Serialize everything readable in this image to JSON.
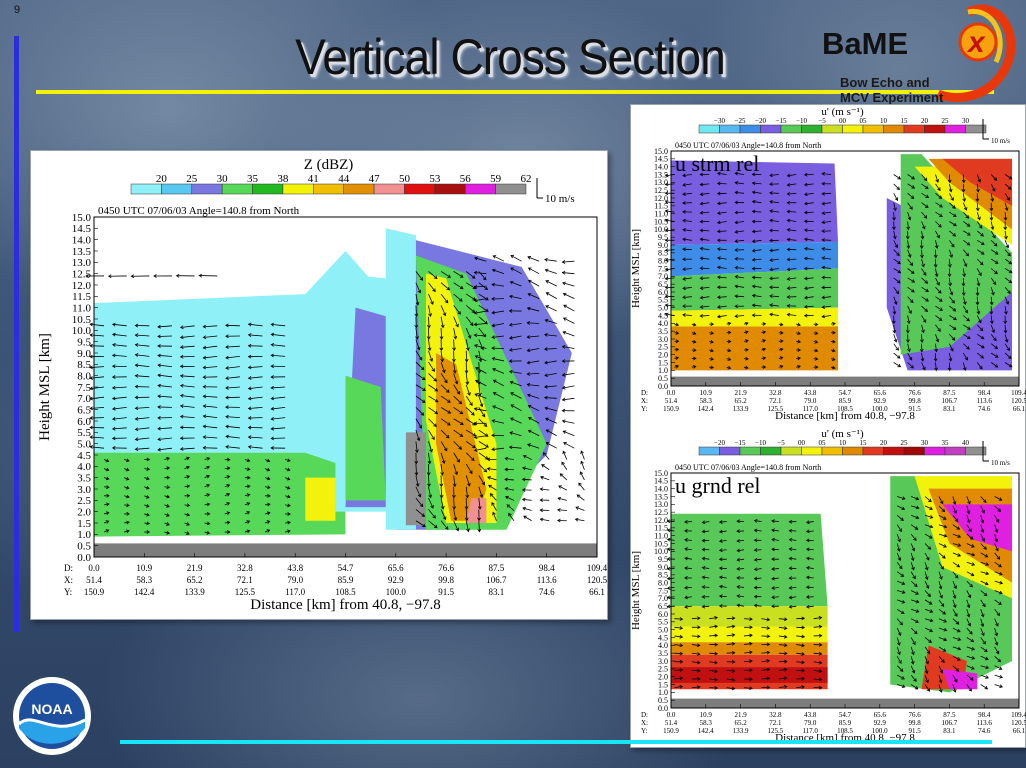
{
  "slide": {
    "number": "9",
    "title": "Vertical Cross Section",
    "logo": {
      "word": "BaME",
      "x": "x",
      "tagline1": "Bow Echo and",
      "tagline2": "MCV Experiment"
    },
    "noaa_label": "NOAA"
  },
  "colors": {
    "title_rule": "#f3f10a",
    "bottom_rule": "#18e6f6",
    "left_rule": "#2a2ee0"
  },
  "chart_data": [
    {
      "type": "heatmap",
      "title": "Z (dBZ)",
      "subtitle": "0450 UTC   07/06/03   Angle=140.8 from North",
      "ylabel": "Height MSL [km]",
      "xlabel": "Distance [km] from 40.8, −97.8",
      "vector_scale_label": "10 m/s",
      "legend": {
        "values": [
          "20",
          "25",
          "30",
          "35",
          "38",
          "41",
          "44",
          "47",
          "50",
          "53",
          "56",
          "59",
          "62"
        ],
        "colors": [
          "#8ff0f8",
          "#58c8f0",
          "#7878e0",
          "#58d858",
          "#22b822",
          "#f2f20a",
          "#f0c000",
          "#e09000",
          "#f09090",
          "#e01010",
          "#a81010",
          "#e020e0",
          "#909090"
        ]
      },
      "ylim": [
        0,
        15
      ],
      "y_ticks": [
        "0.0",
        "0.5",
        "1.0",
        "1.5",
        "2.0",
        "2.5",
        "3.0",
        "3.5",
        "4.0",
        "4.5",
        "5.0",
        "5.5",
        "6.0",
        "6.5",
        "7.0",
        "7.5",
        "8.0",
        "8.5",
        "9.0",
        "9.5",
        "10.0",
        "10.5",
        "11.0",
        "11.5",
        "12.0",
        "12.5",
        "13.0",
        "13.5",
        "14.0",
        "14.5",
        "15.0"
      ],
      "x_ticks": {
        "D": [
          "0.0",
          "10.9",
          "21.9",
          "32.8",
          "43.8",
          "54.7",
          "65.6",
          "76.6",
          "87.5",
          "98.4",
          "109.4"
        ],
        "X": [
          "51.4",
          "58.3",
          "65.2",
          "72.1",
          "79.0",
          "85.9",
          "92.9",
          "99.8",
          "106.7",
          "113.6",
          "120.5"
        ],
        "Y": [
          "150.9",
          "142.4",
          "133.9",
          "125.5",
          "117.0",
          "108.5",
          "100.0",
          "91.5",
          "83.1",
          "74.6",
          "66.1"
        ]
      },
      "row_labels": [
        "D:",
        "X:",
        "Y:"
      ]
    },
    {
      "type": "heatmap",
      "title": "u' (m s⁻¹)",
      "subtitle": "0450 UTC   07/06/03   Angle=140.8 from North",
      "annotation": "u strm rel",
      "ylabel": "Height MSL [km]",
      "xlabel": "Distance [km] from 40.8, −97.8",
      "vector_scale_label": "10 m/s",
      "legend": {
        "values": [
          "−30",
          "−25",
          "−20",
          "−15",
          "−10",
          "−5",
          "00",
          "05",
          "10",
          "15",
          "20",
          "25",
          "30"
        ],
        "colors": [
          "#70e8f0",
          "#58b8f0",
          "#3c8ce8",
          "#7a5ee0",
          "#58c858",
          "#30b030",
          "#c8e020",
          "#f2f20a",
          "#f0c000",
          "#e08a00",
          "#e03a20",
          "#c01010",
          "#e020e0",
          "#909090"
        ]
      },
      "ylim": [
        0,
        15
      ],
      "x_ticks": {
        "D": [
          "0.0",
          "10.9",
          "21.9",
          "32.8",
          "43.8",
          "54.7",
          "65.6",
          "76.6",
          "87.5",
          "98.4",
          "109.4"
        ],
        "X": [
          "51.4",
          "58.3",
          "65.2",
          "72.1",
          "79.0",
          "85.9",
          "92.9",
          "99.8",
          "106.7",
          "113.6",
          "120.5"
        ],
        "Y": [
          "150.9",
          "142.4",
          "133.9",
          "125.5",
          "117.0",
          "108.5",
          "100.0",
          "91.5",
          "83.1",
          "74.6",
          "66.1"
        ]
      },
      "row_labels": [
        "D:",
        "X:",
        "Y:"
      ]
    },
    {
      "type": "heatmap",
      "title": "u' (m s⁻¹)",
      "subtitle": "0450 UTC   07/06/03   Angle=140.8 from North",
      "annotation": "u grnd rel",
      "ylabel": "Height MSL [km]",
      "xlabel": "Distance [km] from 40.8, −97.8",
      "vector_scale_label": "10 m/s",
      "legend": {
        "values": [
          "−20",
          "−15",
          "−10",
          "−5",
          "00",
          "05",
          "10",
          "15",
          "20",
          "25",
          "30",
          "35",
          "40"
        ],
        "colors": [
          "#58b8f0",
          "#7a5ee0",
          "#58c858",
          "#30b030",
          "#c8e020",
          "#f2f20a",
          "#f0c000",
          "#e08a00",
          "#e03a20",
          "#c01010",
          "#a00808",
          "#e020e0",
          "#c040c0",
          "#909090"
        ]
      },
      "ylim": [
        0,
        15
      ],
      "x_ticks": {
        "D": [
          "0.0",
          "10.9",
          "21.9",
          "32.8",
          "43.8",
          "54.7",
          "65.6",
          "76.6",
          "87.5",
          "98.4",
          "109.4"
        ],
        "X": [
          "51.4",
          "58.3",
          "65.2",
          "72.1",
          "79.0",
          "85.9",
          "92.9",
          "99.8",
          "106.7",
          "113.6",
          "120.5"
        ],
        "Y": [
          "150.9",
          "142.4",
          "133.9",
          "125.5",
          "117.0",
          "108.5",
          "100.0",
          "91.5",
          "83.1",
          "74.6",
          "66.1"
        ]
      },
      "row_labels": [
        "D:",
        "X:",
        "Y:"
      ]
    }
  ]
}
